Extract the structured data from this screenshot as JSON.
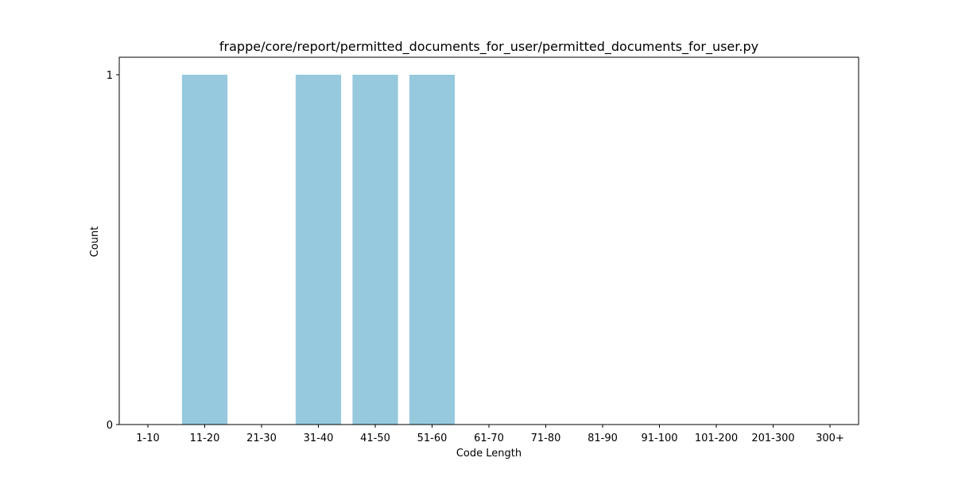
{
  "chart_data": {
    "type": "bar",
    "title": "frappe/core/report/permitted_documents_for_user/permitted_documents_for_user.py",
    "xlabel": "Code Length",
    "ylabel": "Count",
    "categories": [
      "1-10",
      "11-20",
      "21-30",
      "31-40",
      "41-50",
      "51-60",
      "61-70",
      "71-80",
      "81-90",
      "91-100",
      "101-200",
      "201-300",
      "300+"
    ],
    "values": [
      0,
      1,
      0,
      1,
      1,
      1,
      0,
      0,
      0,
      0,
      0,
      0,
      0
    ],
    "ylim": [
      0,
      1
    ],
    "yticks": [
      0,
      1
    ],
    "bar_color": "#96c9dd",
    "grid": false,
    "legend": "none"
  }
}
